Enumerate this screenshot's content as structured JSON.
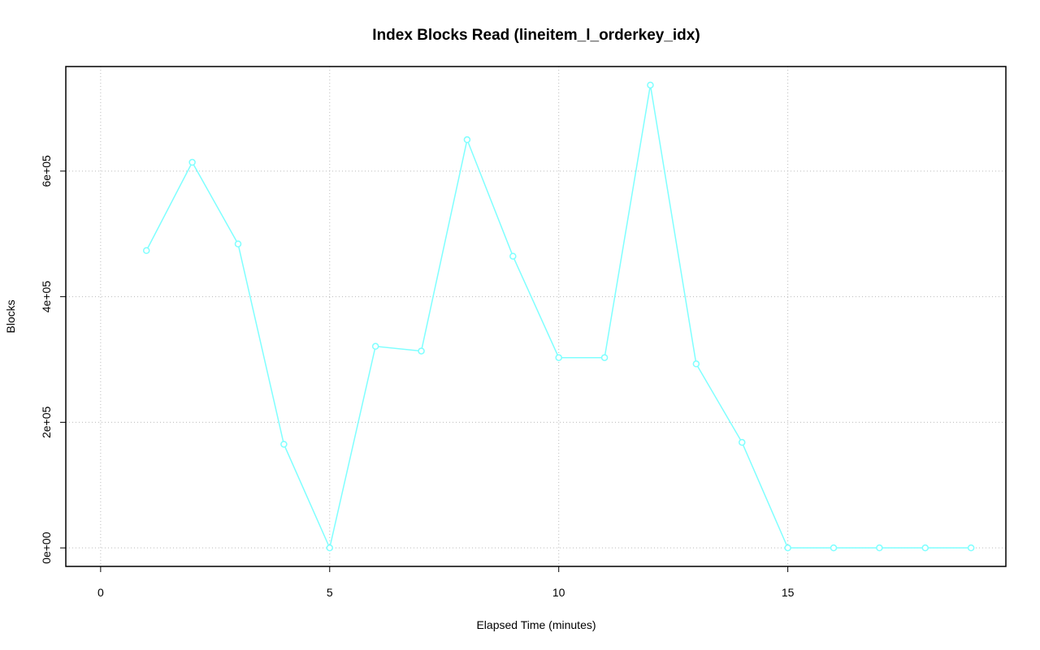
{
  "chart_data": {
    "type": "line",
    "title": "Index Blocks Read (lineitem_l_orderkey_idx)",
    "x_label": "Elapsed Time (minutes)",
    "y_label": "Blocks",
    "x": [
      1,
      2,
      3,
      4,
      5,
      6,
      7,
      8,
      9,
      10,
      11,
      12,
      13,
      14,
      15,
      16,
      17,
      18,
      19
    ],
    "series": [
      {
        "color": "#7fffff",
        "values": [
          473500,
          614000,
          484000,
          165000,
          0,
          321000,
          313500,
          650000,
          464500,
          303000,
          303000,
          737000,
          293000,
          168000,
          0,
          0,
          0,
          0,
          0
        ]
      }
    ],
    "xlim": [
      -0.76,
      19.76
    ],
    "xticks": [
      0,
      5,
      10,
      15
    ],
    "ylim": [
      -29500,
      766500
    ],
    "yticks": [
      {
        "value": 0,
        "label": "0e+00"
      },
      {
        "value": 200000,
        "label": "2e+05"
      },
      {
        "value": 400000,
        "label": "4e+05"
      },
      {
        "value": 600000,
        "label": "6e+05"
      }
    ],
    "grid": true
  }
}
